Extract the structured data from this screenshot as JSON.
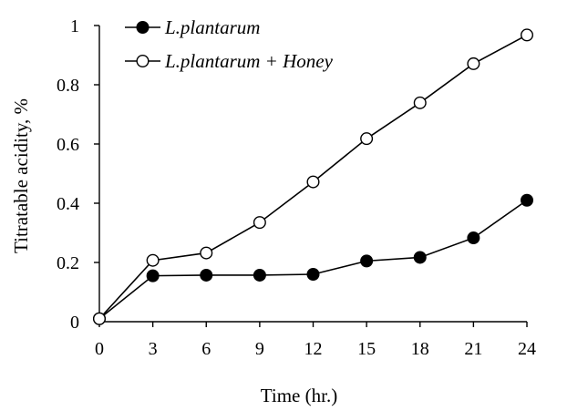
{
  "chart_data": {
    "type": "line",
    "title": "",
    "xlabel": "Time (hr.)",
    "ylabel": "Titratable acidity, %",
    "x": [
      0,
      3,
      6,
      9,
      12,
      15,
      18,
      21,
      24
    ],
    "xlim": [
      0,
      24
    ],
    "ylim": [
      0,
      1
    ],
    "x_ticks": [
      "0",
      "3",
      "6",
      "9",
      "12",
      "15",
      "18",
      "21",
      "24"
    ],
    "y_ticks": [
      "0",
      "0.2",
      "0.4",
      "0.6",
      "0.8",
      "1"
    ],
    "grid": false,
    "legend_position": "top-left",
    "series": [
      {
        "name": "L.plantarum",
        "marker": "filled-circle",
        "color": "#000000",
        "values": [
          0.01,
          0.155,
          0.157,
          0.157,
          0.16,
          0.205,
          0.217,
          0.283,
          0.41
        ]
      },
      {
        "name": "L.plantarum + Honey",
        "marker": "open-circle",
        "color": "#000000",
        "values": [
          0.01,
          0.207,
          0.232,
          0.335,
          0.472,
          0.618,
          0.739,
          0.871,
          0.968
        ]
      }
    ]
  }
}
